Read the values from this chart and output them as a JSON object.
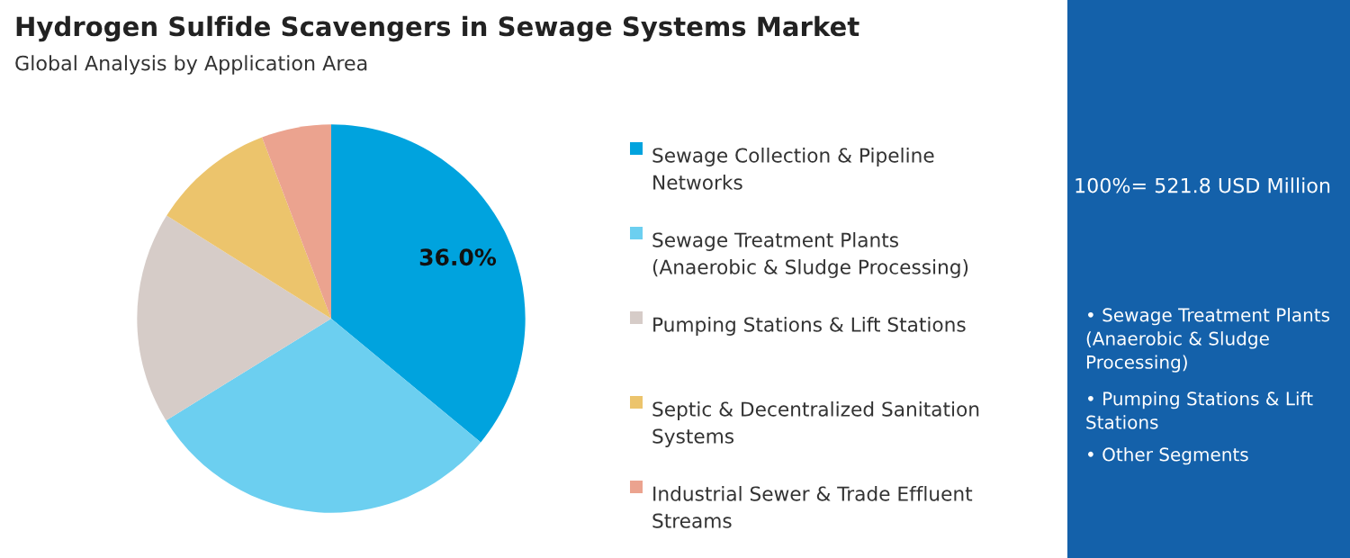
{
  "chart_data": {
    "type": "pie",
    "title": "Hydrogen Sulfide Scavengers in Sewage Systems Market",
    "subtitle": "Global Analysis by Application Area",
    "categories": [
      "Sewage Collection & Pipeline Networks",
      "Sewage Treatment Plants (Anaerobic & Sludge Processing)",
      "Pumping Stations & Lift Stations",
      "Septic & Decentralized Sanitation Systems",
      "Industrial Sewer & Trade Effluent Streams"
    ],
    "values": [
      36.0,
      30.2,
      17.7,
      10.3,
      5.8
    ],
    "colors": [
      "#00a3de",
      "#6ccff0",
      "#d6ccc8",
      "#ecc46c",
      "#eba38f"
    ],
    "value_labels": [
      "36.0%",
      null,
      null,
      null,
      null
    ],
    "legend": "right",
    "annotations": [
      "100%= 521.8 USD Million",
      "• Sewage Treatment Plants (Anaerobic & Sludge Processing)",
      "• Pumping Stations & Lift Stations",
      "• Other Segments"
    ]
  }
}
